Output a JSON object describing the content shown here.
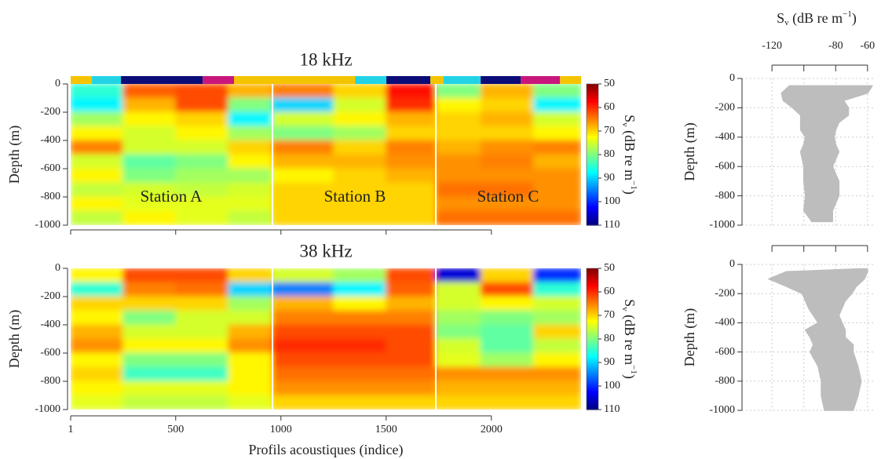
{
  "chart_data": [
    {
      "type": "heatmap",
      "title": "18 kHz",
      "ylabel": "Depth (m)",
      "x_edges": [
        1,
        250,
        500,
        750,
        960,
        1250,
        1500,
        1736,
        1950,
        2200,
        2426
      ],
      "y_edges": [
        0,
        -100,
        -200,
        -300,
        -400,
        -500,
        -600,
        -700,
        -800,
        -900,
        -1000
      ],
      "values": [
        [
          85,
          63,
          62,
          68,
          65,
          70,
          58,
          80,
          68,
          80
        ],
        [
          88,
          68,
          62,
          80,
          90,
          75,
          60,
          72,
          70,
          88
        ],
        [
          78,
          72,
          70,
          88,
          75,
          72,
          68,
          70,
          68,
          75
        ],
        [
          72,
          75,
          72,
          78,
          80,
          78,
          70,
          70,
          70,
          72
        ],
        [
          65,
          75,
          75,
          70,
          65,
          70,
          65,
          68,
          66,
          65
        ],
        [
          75,
          82,
          80,
          72,
          68,
          68,
          66,
          66,
          65,
          68
        ],
        [
          72,
          80,
          78,
          78,
          72,
          70,
          68,
          66,
          66,
          66
        ],
        [
          76,
          75,
          76,
          75,
          70,
          70,
          70,
          64,
          64,
          66
        ],
        [
          72,
          74,
          74,
          74,
          70,
          70,
          70,
          66,
          66,
          66
        ],
        [
          76,
          72,
          74,
          76,
          70,
          70,
          70,
          64,
          64,
          64
        ]
      ],
      "xlim": [
        1,
        2426
      ],
      "xticks": [
        {
          "value": 1,
          "label": null
        },
        {
          "value": 500,
          "label": null
        },
        {
          "value": 1000,
          "label": null
        },
        {
          "value": 1500,
          "label": null
        },
        {
          "value": 2000,
          "label": null
        }
      ],
      "ylim": [
        -1000,
        0
      ],
      "yticks": [
        0,
        -200,
        -400,
        -600,
        -800,
        -1000
      ],
      "dividers": [
        960,
        1736
      ],
      "annotations": [
        "Station A",
        "Station B",
        "Station C"
      ],
      "strip": [
        {
          "start": 1,
          "end": 102,
          "color": "#f5c400"
        },
        {
          "start": 102,
          "end": 240,
          "color": "#22d3e6"
        },
        {
          "start": 240,
          "end": 628,
          "color": "#0c0c78"
        },
        {
          "start": 628,
          "end": 777,
          "color": "#c8167c"
        },
        {
          "start": 777,
          "end": 1352,
          "color": "#f5c400"
        },
        {
          "start": 1352,
          "end": 1501,
          "color": "#22d3e6"
        },
        {
          "start": 1501,
          "end": 1710,
          "color": "#0c0c78"
        },
        {
          "start": 1710,
          "end": 1773,
          "color": "#f5c400"
        },
        {
          "start": 1773,
          "end": 1949,
          "color": "#22d3e6"
        },
        {
          "start": 1949,
          "end": 2139,
          "color": "#0c0c78"
        },
        {
          "start": 2139,
          "end": 2326,
          "color": "#c8167c"
        },
        {
          "start": 2326,
          "end": 2426,
          "color": "#f5c400"
        }
      ],
      "colorbar": {
        "colormap": "jet_r",
        "lim": [
          50,
          110
        ],
        "ticks": [
          50,
          60,
          70,
          80,
          90,
          100,
          110
        ],
        "label": {
          "main": "S",
          "sub": "v",
          "text": " (dB re m",
          "sup": "−1",
          "end": ")"
        }
      }
    },
    {
      "type": "heatmap",
      "title": "38 kHz",
      "ylabel": "Depth (m)",
      "xlabel": "Profils acoustiques (indice)",
      "x_edges": [
        1,
        250,
        500,
        750,
        960,
        1250,
        1500,
        1736,
        1950,
        2200,
        2426
      ],
      "y_edges": [
        0,
        -100,
        -200,
        -300,
        -400,
        -500,
        -600,
        -700,
        -800,
        -900,
        -1000
      ],
      "values": [
        [
          72,
          62,
          62,
          70,
          75,
          78,
          62,
          105,
          70,
          100
        ],
        [
          85,
          65,
          64,
          90,
          95,
          88,
          63,
          75,
          62,
          85
        ],
        [
          70,
          70,
          70,
          78,
          68,
          72,
          68,
          75,
          72,
          75
        ],
        [
          72,
          80,
          75,
          75,
          65,
          65,
          65,
          78,
          80,
          78
        ],
        [
          68,
          75,
          75,
          68,
          62,
          62,
          62,
          80,
          82,
          70
        ],
        [
          66,
          72,
          72,
          66,
          60,
          60,
          62,
          75,
          82,
          76
        ],
        [
          72,
          80,
          80,
          72,
          62,
          62,
          62,
          74,
          78,
          72
        ],
        [
          70,
          84,
          84,
          72,
          64,
          64,
          64,
          66,
          66,
          66
        ],
        [
          72,
          74,
          74,
          72,
          66,
          66,
          66,
          68,
          68,
          68
        ],
        [
          74,
          76,
          76,
          74,
          70,
          70,
          70,
          70,
          70,
          70
        ]
      ],
      "xlim": [
        1,
        2426
      ],
      "xticks": [
        1,
        500,
        1000,
        1500,
        2000
      ],
      "ylim": [
        -1000,
        0
      ],
      "yticks": [
        0,
        -200,
        -400,
        -600,
        -800,
        -1000
      ],
      "dividers": [
        960,
        1736
      ],
      "colorbar": {
        "colormap": "jet_r",
        "lim": [
          50,
          110
        ],
        "ticks": [
          50,
          60,
          70,
          80,
          90,
          100,
          110
        ],
        "label": {
          "main": "S",
          "sub": "v",
          "text": " (dB re m",
          "sup": "−1",
          "end": ")"
        }
      }
    },
    {
      "type": "range_area",
      "ylabel": "Depth (m)",
      "color": "#bdbdbd",
      "grid": true,
      "xlabel": {
        "main": "S",
        "sub": "v",
        "text": " (dB re m",
        "sup": "−1",
        "end": ")"
      },
      "depth": [
        -50,
        -100,
        -150,
        -200,
        -250,
        -300,
        -350,
        -400,
        -450,
        -500,
        -600,
        -700,
        -800,
        -900,
        -975
      ],
      "low": [
        -109,
        -114,
        -113,
        -107,
        -102,
        -102,
        -102,
        -99,
        -100,
        -102,
        -100,
        -100,
        -99,
        -100,
        -95
      ],
      "high": [
        -57,
        -60,
        -75,
        -72,
        -72,
        -78,
        -80,
        -81,
        -80,
        -78,
        -82,
        -78,
        -78,
        -82,
        -82
      ],
      "xlim": [
        -125,
        -55
      ],
      "xticks": [
        -120,
        {
          "value": -100,
          "label": null
        },
        -80,
        -60
      ],
      "ylim": [
        -1000,
        0
      ],
      "yticks": [
        0,
        -200,
        -400,
        -600,
        -800,
        -1000
      ]
    },
    {
      "type": "range_area",
      "ylabel": "Depth (m)",
      "color": "#bdbdbd",
      "grid": true,
      "depth": [
        -30,
        -50,
        -100,
        -150,
        -200,
        -250,
        -300,
        -350,
        -400,
        -450,
        -500,
        -550,
        -600,
        -700,
        -800,
        -900,
        -1000
      ],
      "low": [
        -65,
        -111,
        -122,
        -111,
        -101,
        -99,
        -97,
        -94,
        -91,
        -99,
        -96,
        -94,
        -96,
        -91,
        -89,
        -89,
        -87
      ],
      "high": [
        -60,
        -60,
        -62,
        -67,
        -70,
        -74,
        -76,
        -78,
        -76,
        -74,
        -74,
        -69,
        -69,
        -66,
        -64,
        -66,
        -69
      ],
      "xlim": [
        -125,
        -55
      ],
      "xticks": [
        {
          "value": -120,
          "label": null
        },
        {
          "value": -100,
          "label": null
        },
        {
          "value": -80,
          "label": null
        },
        {
          "value": -60,
          "label": null
        }
      ],
      "ylim": [
        -1000,
        0
      ],
      "yticks": [
        0,
        -200,
        -400,
        -600,
        -800,
        -1000
      ]
    }
  ]
}
